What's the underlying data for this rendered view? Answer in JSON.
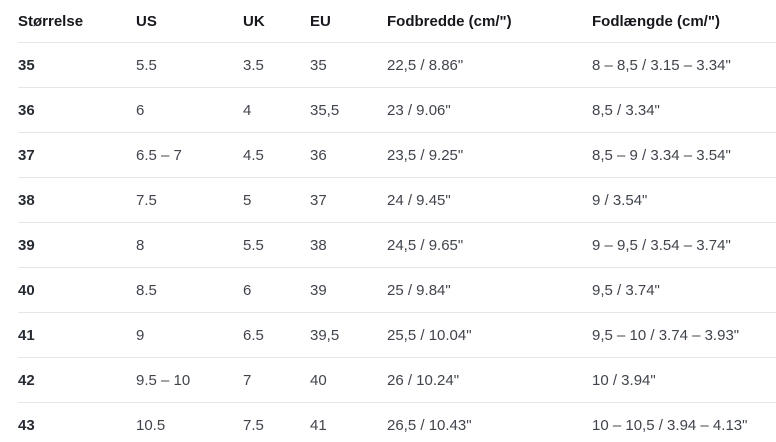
{
  "table": {
    "name": "shoe-size-conversion-table",
    "columns": [
      {
        "key": "size",
        "label": "Størrelse"
      },
      {
        "key": "us",
        "label": "US"
      },
      {
        "key": "uk",
        "label": "UK"
      },
      {
        "key": "eu",
        "label": "EU"
      },
      {
        "key": "foot-width",
        "label": "Fodbredde (cm/\")"
      },
      {
        "key": "foot-length",
        "label": "Fodlængde (cm/\")"
      }
    ],
    "rows": [
      [
        "35",
        "5.5",
        "3.5",
        "35",
        "22,5 / 8.86\"",
        "8 – 8,5 / 3.15 – 3.34\""
      ],
      [
        "36",
        "6",
        "4",
        "35,5",
        "23 / 9.06\"",
        "8,5 / 3.34\""
      ],
      [
        "37",
        "6.5 – 7",
        "4.5",
        "36",
        "23,5 / 9.25\"",
        "8,5 – 9 / 3.34 – 3.54\""
      ],
      [
        "38",
        "7.5",
        "5",
        "37",
        "24 / 9.45\"",
        "9 / 3.54\""
      ],
      [
        "39",
        "8",
        "5.5",
        "38",
        "24,5 / 9.65\"",
        "9 – 9,5 / 3.54 – 3.74\""
      ],
      [
        "40",
        "8.5",
        "6",
        "39",
        "25 / 9.84\"",
        "9,5 / 3.74\""
      ],
      [
        "41",
        "9",
        "6.5",
        "39,5",
        "25,5 / 10.04\"",
        "9,5 – 10 / 3.74 – 3.93\""
      ],
      [
        "42",
        "9.5 – 10",
        "7",
        "40",
        "26 / 10.24\"",
        "10 / 3.94\""
      ],
      [
        "43",
        "10.5",
        "7.5",
        "41",
        "26,5 / 10.43\"",
        "10 – 10,5 / 3.94 – 4.13\""
      ]
    ],
    "colors": {
      "header_text": "#16181d",
      "size_column_text": "#272b33",
      "cell_text": "#40444c",
      "divider": "#e4e6e9",
      "background": "#ffffff"
    }
  }
}
